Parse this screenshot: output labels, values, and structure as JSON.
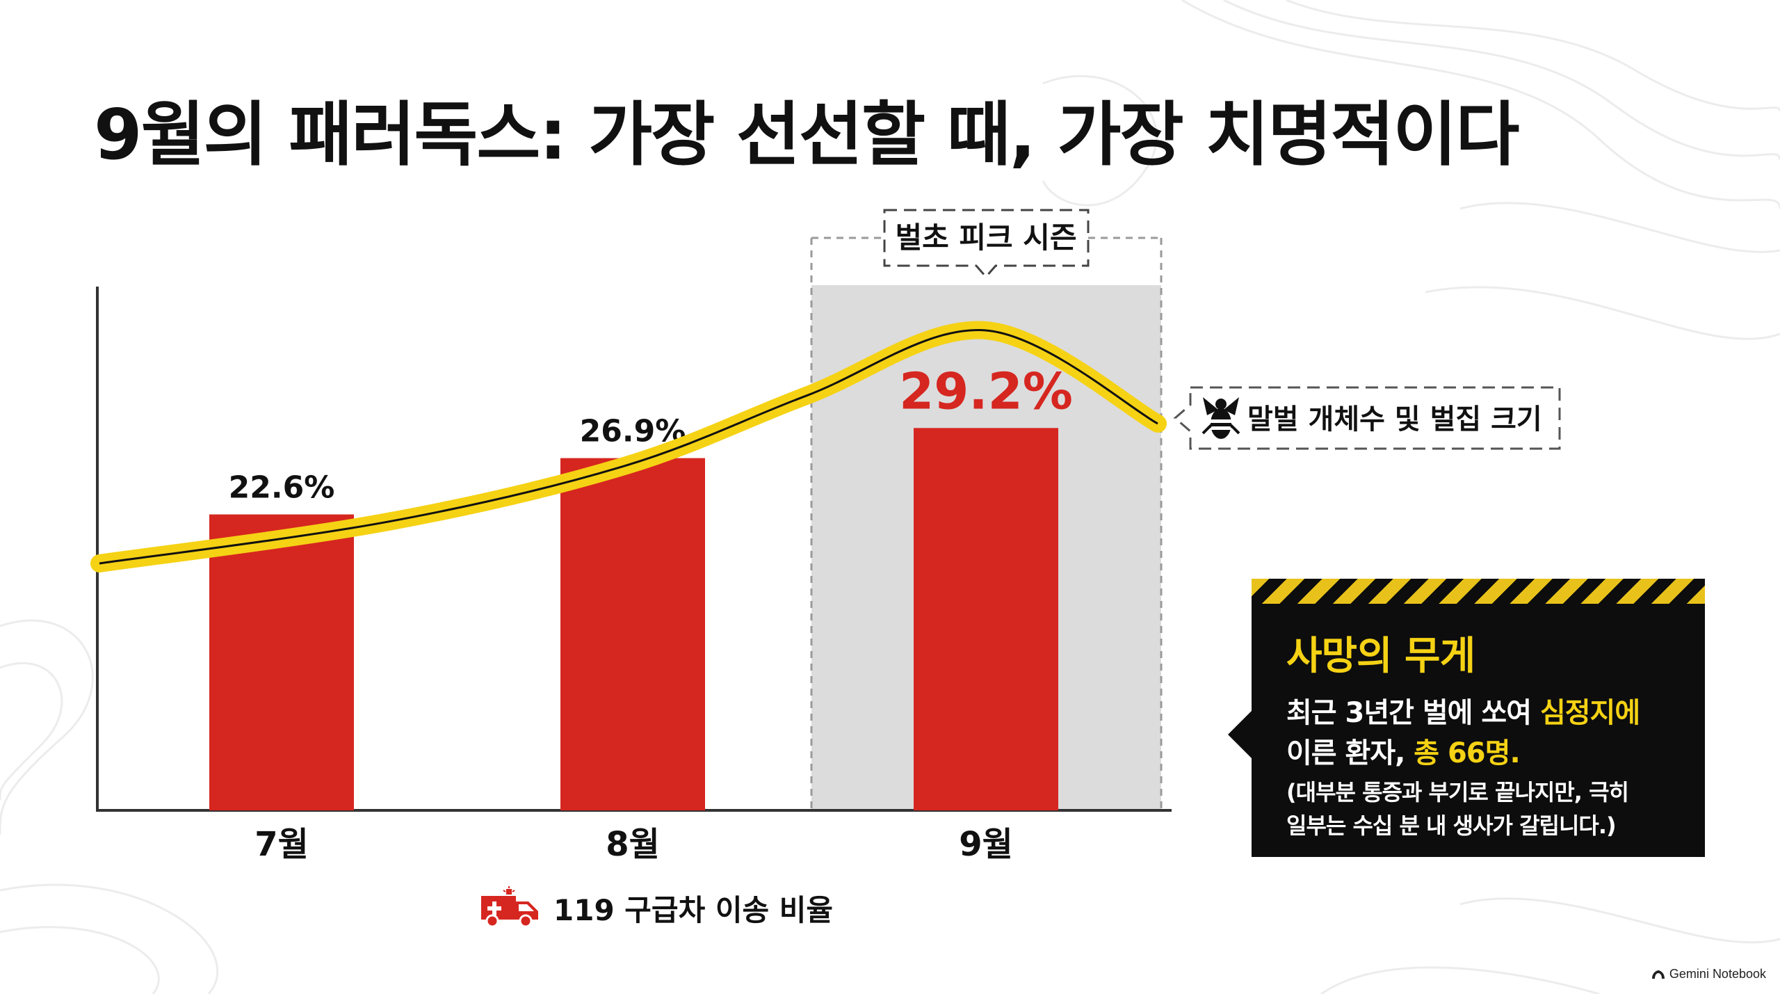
{
  "title": "9월의 패러독스: 가장 선선할 때, 가장 치명적이다",
  "chart_data": {
    "type": "bar",
    "categories": [
      "7월",
      "8월",
      "9월"
    ],
    "series": [
      {
        "name": "119 구급차 이송 비율",
        "values": [
          22.6,
          26.9,
          29.2
        ],
        "labels": [
          "22.6%",
          "26.9%",
          "29.2%"
        ],
        "color": "#d62620"
      }
    ],
    "trend_line": {
      "name": "말벌 개체수 및 벌집 크기",
      "description_only_shape": "rises from July, peaks in September, then declines",
      "relative_levels": [
        0.0,
        0.18,
        0.42,
        0.72,
        1.0,
        0.6
      ],
      "color": "#f5d214"
    },
    "highlight": {
      "category": "9월",
      "label": "벌초 피크 시즌"
    },
    "ylim": [
      0,
      40
    ],
    "grid": false,
    "legend": "bottom"
  },
  "warning_panel": {
    "title": "사망의 무게",
    "line1_pre": "최근 3년간 벌에 쏘여 ",
    "line1_hl": "심정지에",
    "line2_pre": "이른 환자, ",
    "line2_hl": "총 66명.",
    "note1": "(대부분 통증과 부기로 끝나지만, 극히",
    "note2": "일부는 수십 분 내 생사가 갈립니다.)"
  },
  "watermark": "Gemini Notebook",
  "colors": {
    "bar": "#d62620",
    "trend": "#f5d214",
    "panel": "#0d0d0d",
    "accent": "#f5d214",
    "highlight_bg": "#dcdcdc"
  }
}
